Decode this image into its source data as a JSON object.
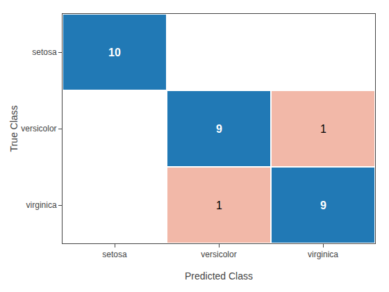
{
  "chart_data": {
    "type": "heatmap",
    "x": [
      "setosa",
      "versicolor",
      "virginica"
    ],
    "y": [
      "setosa",
      "versicolor",
      "virginica"
    ],
    "cells": [
      [
        10,
        0,
        0
      ],
      [
        0,
        9,
        1
      ],
      [
        0,
        1,
        9
      ]
    ],
    "value_labels": [
      [
        "10",
        null,
        null
      ],
      [
        null,
        "9",
        "1"
      ],
      [
        null,
        "1",
        "9"
      ]
    ],
    "colors": [
      [
        "#2179B5",
        "#FFFFFF",
        "#FFFFFF"
      ],
      [
        "#FFFFFF",
        "#2179B5",
        "#F2B8A8"
      ],
      [
        "#FFFFFF",
        "#F2B8A8",
        "#2179B5"
      ]
    ],
    "xlabel": "Predicted Class",
    "ylabel": "True Class",
    "data_labels": true
  }
}
